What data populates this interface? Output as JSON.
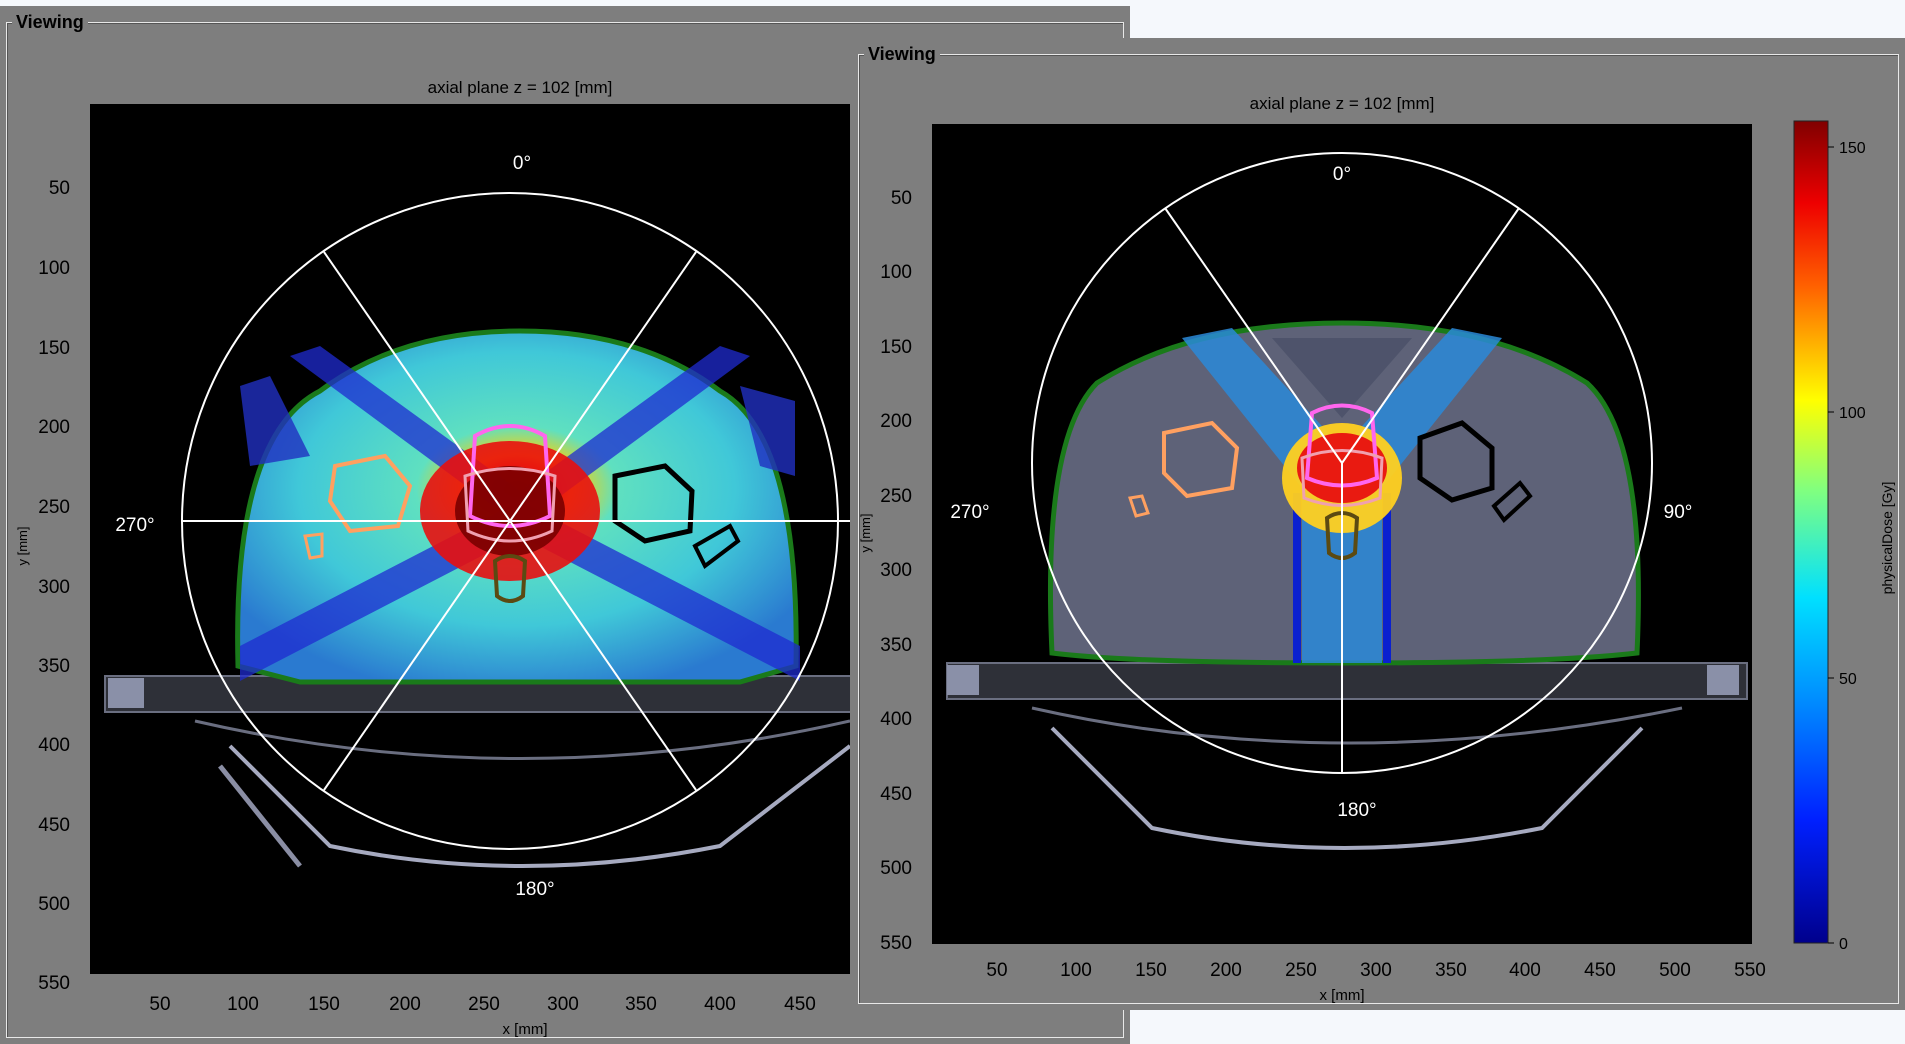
{
  "left_panel": {
    "group_title": "Viewing",
    "plot_title": "axial plane z = 102 [mm]",
    "xlabel": "x [mm]",
    "ylabel": "y [mm]",
    "x_ticks": [
      "50",
      "100",
      "150",
      "200",
      "250",
      "300",
      "350",
      "400",
      "450"
    ],
    "y_ticks": [
      "50",
      "100",
      "150",
      "200",
      "250",
      "300",
      "350",
      "400",
      "450",
      "500",
      "550"
    ],
    "angle_labels": {
      "top": "0°",
      "left": "270°",
      "bottom": "180°"
    }
  },
  "right_panel": {
    "group_title": "Viewing",
    "plot_title": "axial plane z = 102 [mm]",
    "xlabel": "x [mm]",
    "ylabel": "y [mm]",
    "x_ticks": [
      "50",
      "100",
      "150",
      "200",
      "250",
      "300",
      "350",
      "400",
      "450",
      "500",
      "550"
    ],
    "y_ticks": [
      "50",
      "100",
      "150",
      "200",
      "250",
      "300",
      "350",
      "400",
      "450",
      "500",
      "550"
    ],
    "angle_labels": {
      "top": "0°",
      "left": "270°",
      "right": "90°",
      "bottom": "180°"
    },
    "colorbar": {
      "label": "physicalDose [Gy]",
      "ticks": [
        "150",
        "100",
        "50",
        "0"
      ]
    }
  },
  "colors": {
    "panel_bg": "#7e7e7e",
    "ptv": "#ff66ee",
    "rectum": "#5b4a12",
    "femoral_left": "#ffa060",
    "femoral_right": "#000000",
    "body_outline": "#1a7a1a"
  }
}
